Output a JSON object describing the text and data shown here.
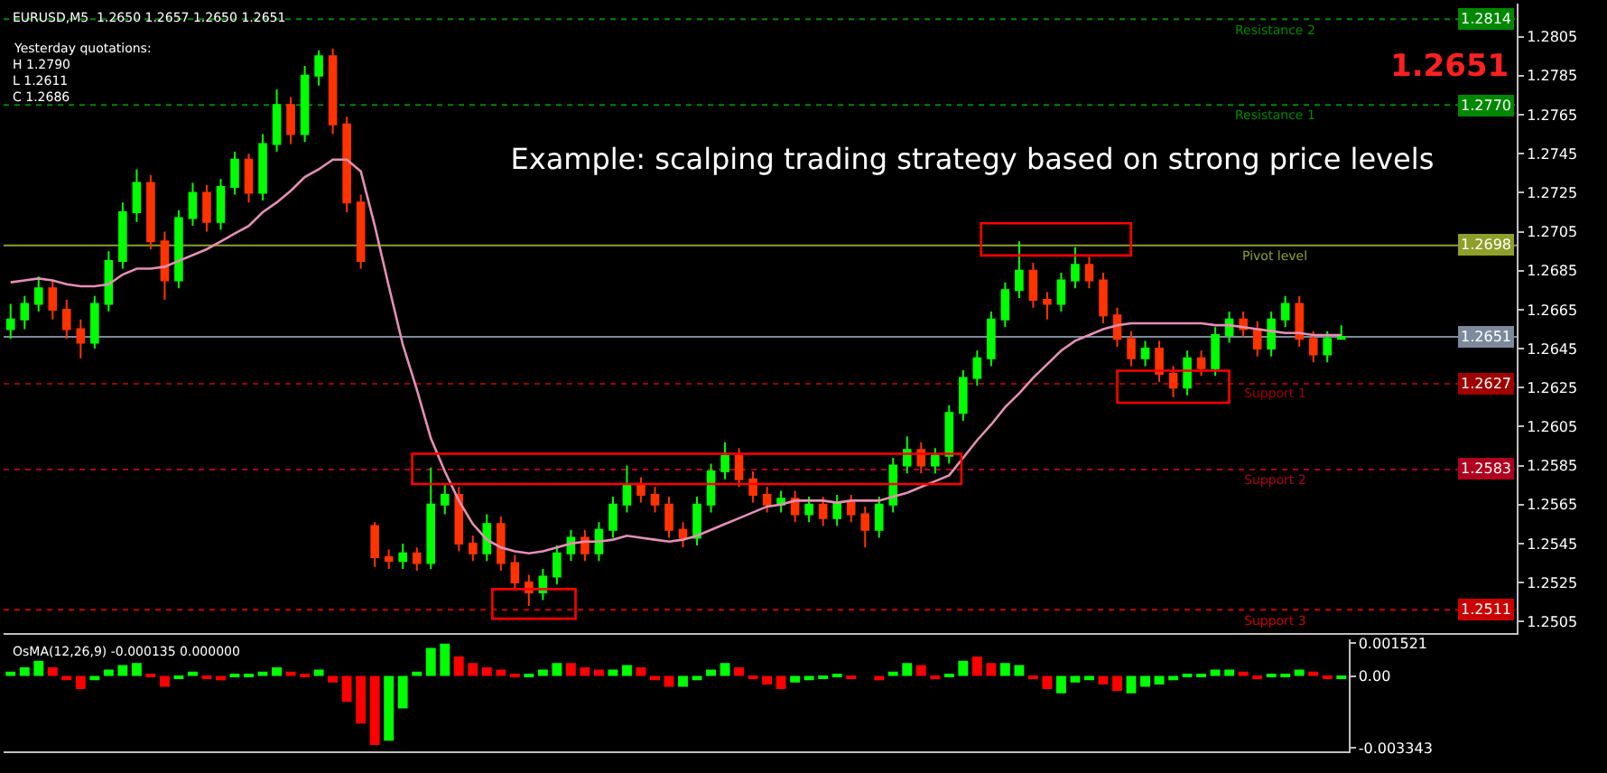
{
  "chart_data": [
    {
      "type": "candlestick",
      "title": "Example: scalping trading strategy based on strong price levels",
      "subtitle": "EURUSD,M5  1.2650 1.2657 1.2650 1.2651",
      "categories": [
        null,
        null,
        null,
        null,
        null,
        null,
        null,
        null,
        null,
        null,
        null,
        null,
        null,
        null,
        null,
        null,
        null,
        null,
        null,
        null,
        null,
        null,
        null,
        null,
        null,
        null,
        null,
        null,
        null,
        null,
        null,
        null,
        null,
        null,
        null,
        null,
        null,
        null,
        null,
        null,
        null,
        null,
        null,
        null,
        null,
        null,
        null,
        null,
        null,
        null,
        null,
        null,
        null,
        null,
        null,
        null,
        null,
        null,
        null,
        null,
        null,
        null,
        null,
        null,
        null,
        null,
        null,
        null,
        null,
        null,
        null,
        null,
        null,
        null,
        null,
        null,
        null,
        null,
        null,
        null,
        null,
        null,
        null,
        null,
        null,
        null,
        null,
        null,
        null,
        null,
        null,
        null,
        null,
        null,
        null,
        null
      ],
      "ohlc": [
        [
          1.2655,
          1.2668,
          1.265,
          1.266
        ],
        [
          1.266,
          1.2672,
          1.2655,
          1.2668
        ],
        [
          1.2668,
          1.2682,
          1.2664,
          1.2676
        ],
        [
          1.2676,
          1.268,
          1.266,
          1.2665
        ],
        [
          1.2665,
          1.267,
          1.265,
          1.2655
        ],
        [
          1.2655,
          1.266,
          1.264,
          1.2648
        ],
        [
          1.2648,
          1.2672,
          1.2645,
          1.2668
        ],
        [
          1.2668,
          1.2695,
          1.2664,
          1.269
        ],
        [
          1.269,
          1.272,
          1.2686,
          1.2715
        ],
        [
          1.2715,
          1.2737,
          1.271,
          1.273
        ],
        [
          1.273,
          1.2734,
          1.2696,
          1.27
        ],
        [
          1.27,
          1.2705,
          1.267,
          1.268
        ],
        [
          1.268,
          1.2716,
          1.2676,
          1.2712
        ],
        [
          1.2712,
          1.273,
          1.2708,
          1.2725
        ],
        [
          1.2725,
          1.2729,
          1.2705,
          1.271
        ],
        [
          1.271,
          1.2732,
          1.2706,
          1.2728
        ],
        [
          1.2728,
          1.2746,
          1.2724,
          1.2742
        ],
        [
          1.2742,
          1.2745,
          1.272,
          1.2725
        ],
        [
          1.2725,
          1.2755,
          1.2721,
          1.275
        ],
        [
          1.275,
          1.2778,
          1.2746,
          1.277
        ],
        [
          1.277,
          1.2774,
          1.275,
          1.2755
        ],
        [
          1.2755,
          1.279,
          1.2751,
          1.2785
        ],
        [
          1.2785,
          1.2798,
          1.278,
          1.2795
        ],
        [
          1.2795,
          1.2799,
          1.2755,
          1.276
        ],
        [
          1.276,
          1.2764,
          1.2715,
          1.272
        ],
        [
          1.272,
          1.2724,
          1.2686,
          1.269
        ],
        [
          1.2554,
          1.2556,
          1.2533,
          1.2538
        ],
        [
          1.2538,
          1.2542,
          1.2532,
          1.2536
        ],
        [
          1.2536,
          1.2545,
          1.2532,
          1.254
        ],
        [
          1.254,
          1.2543,
          1.2531,
          1.2535
        ],
        [
          1.2535,
          1.2584,
          1.2532,
          1.2565
        ],
        [
          1.2565,
          1.2575,
          1.256,
          1.257
        ],
        [
          1.257,
          1.2574,
          1.2541,
          1.2545
        ],
        [
          1.2545,
          1.2549,
          1.2536,
          1.254
        ],
        [
          1.254,
          1.256,
          1.2536,
          1.2555
        ],
        [
          1.2555,
          1.2559,
          1.2531,
          1.2535
        ],
        [
          1.2535,
          1.2539,
          1.2521,
          1.2525
        ],
        [
          1.2525,
          1.2529,
          1.2513,
          1.252
        ],
        [
          1.252,
          1.2532,
          1.2516,
          1.2528
        ],
        [
          1.2528,
          1.2544,
          1.2524,
          1.254
        ],
        [
          1.254,
          1.2552,
          1.2536,
          1.2548
        ],
        [
          1.2548,
          1.2552,
          1.2536,
          1.254
        ],
        [
          1.254,
          1.2556,
          1.2536,
          1.2552
        ],
        [
          1.2552,
          1.2569,
          1.2548,
          1.2565
        ],
        [
          1.2565,
          1.2585,
          1.2561,
          1.2575
        ],
        [
          1.2575,
          1.2579,
          1.2566,
          1.257
        ],
        [
          1.257,
          1.2574,
          1.2561,
          1.2565
        ],
        [
          1.2565,
          1.2569,
          1.2548,
          1.2552
        ],
        [
          1.2552,
          1.2556,
          1.2543,
          1.2548
        ],
        [
          1.2548,
          1.2569,
          1.2544,
          1.2565
        ],
        [
          1.2565,
          1.2586,
          1.2561,
          1.2582
        ],
        [
          1.2582,
          1.2597,
          1.2578,
          1.259
        ],
        [
          1.259,
          1.2594,
          1.2574,
          1.2578
        ],
        [
          1.2578,
          1.2582,
          1.2566,
          1.257
        ],
        [
          1.257,
          1.2574,
          1.2561,
          1.2565
        ],
        [
          1.2565,
          1.2572,
          1.2561,
          1.2568
        ],
        [
          1.2568,
          1.2572,
          1.2556,
          1.256
        ],
        [
          1.256,
          1.2569,
          1.2556,
          1.2565
        ],
        [
          1.2565,
          1.2569,
          1.2554,
          1.2558
        ],
        [
          1.2558,
          1.257,
          1.2554,
          1.2566
        ],
        [
          1.2566,
          1.257,
          1.2556,
          1.256
        ],
        [
          1.256,
          1.2564,
          1.2543,
          1.2552
        ],
        [
          1.2552,
          1.2569,
          1.2548,
          1.2565
        ],
        [
          1.2565,
          1.2589,
          1.2561,
          1.2585
        ],
        [
          1.2585,
          1.26,
          1.2581,
          1.2593
        ],
        [
          1.2593,
          1.2597,
          1.2581,
          1.2585
        ],
        [
          1.2585,
          1.2594,
          1.2581,
          1.259
        ],
        [
          1.259,
          1.2616,
          1.2586,
          1.2612
        ],
        [
          1.2612,
          1.2634,
          1.2608,
          1.263
        ],
        [
          1.263,
          1.2644,
          1.2626,
          1.264
        ],
        [
          1.264,
          1.2664,
          1.2636,
          1.266
        ],
        [
          1.266,
          1.2679,
          1.2656,
          1.2675
        ],
        [
          1.2675,
          1.27,
          1.2671,
          1.2685
        ],
        [
          1.2685,
          1.2689,
          1.2666,
          1.267
        ],
        [
          1.267,
          1.2674,
          1.266,
          1.2668
        ],
        [
          1.2668,
          1.2684,
          1.2664,
          1.268
        ],
        [
          1.268,
          1.2697,
          1.2676,
          1.2688
        ],
        [
          1.2688,
          1.2692,
          1.2676,
          1.268
        ],
        [
          1.268,
          1.2684,
          1.2658,
          1.2662
        ],
        [
          1.2662,
          1.2666,
          1.2646,
          1.265
        ],
        [
          1.265,
          1.2654,
          1.2636,
          1.264
        ],
        [
          1.264,
          1.2649,
          1.2636,
          1.2645
        ],
        [
          1.2645,
          1.2649,
          1.2628,
          1.2632
        ],
        [
          1.2632,
          1.2636,
          1.262,
          1.2625
        ],
        [
          1.2625,
          1.2644,
          1.2621,
          1.264
        ],
        [
          1.264,
          1.2644,
          1.2631,
          1.2635
        ],
        [
          1.2635,
          1.2656,
          1.2631,
          1.2652
        ],
        [
          1.2652,
          1.2664,
          1.2648,
          1.266
        ],
        [
          1.266,
          1.2664,
          1.2651,
          1.2655
        ],
        [
          1.2655,
          1.2659,
          1.2641,
          1.2645
        ],
        [
          1.2645,
          1.2664,
          1.2641,
          1.266
        ],
        [
          1.266,
          1.2672,
          1.2656,
          1.2668
        ],
        [
          1.2668,
          1.2672,
          1.2646,
          1.265
        ],
        [
          1.265,
          1.2654,
          1.2638,
          1.2642
        ],
        [
          1.2642,
          1.2654,
          1.2638,
          1.265
        ],
        [
          1.265,
          1.2657,
          1.265,
          1.2651
        ]
      ],
      "colors": [
        "#00ff00",
        "#00ff00",
        "#00ff00",
        "#ff3300",
        "#ff3300",
        "#ff3300",
        "#00ff00",
        "#00ff00",
        "#00ff00",
        "#00ff00",
        "#ff3300",
        "#ff3300",
        "#00ff00",
        "#00ff00",
        "#ff3300",
        "#00ff00",
        "#00ff00",
        "#ff3300",
        "#00ff00",
        "#00ff00",
        "#ff3300",
        "#00ff00",
        "#00ff00",
        "#ff3300",
        "#ff3300",
        "#ff3300",
        "#ff3300",
        "#ff3300",
        "#00ff00",
        "#ff3300",
        "#00ff00",
        "#00ff00",
        "#ff3300",
        "#ff3300",
        "#00ff00",
        "#ff3300",
        "#ff3300",
        "#ff3300",
        "#00ff00",
        "#00ff00",
        "#00ff00",
        "#ff3300",
        "#00ff00",
        "#00ff00",
        "#00ff00",
        "#ff3300",
        "#ff3300",
        "#ff3300",
        "#ff3300",
        "#00ff00",
        "#00ff00",
        "#00ff00",
        "#ff3300",
        "#ff3300",
        "#ff3300",
        "#00ff00",
        "#ff3300",
        "#00ff00",
        "#ff3300",
        "#00ff00",
        "#ff3300",
        "#ff3300",
        "#00ff00",
        "#00ff00",
        "#00ff00",
        "#ff3300",
        "#00ff00",
        "#00ff00",
        "#00ff00",
        "#00ff00",
        "#00ff00",
        "#00ff00",
        "#00ff00",
        "#ff3300",
        "#ff3300",
        "#00ff00",
        "#00ff00",
        "#ff3300",
        "#ff3300",
        "#ff3300",
        "#ff3300",
        "#00ff00",
        "#ff3300",
        "#ff3300",
        "#00ff00",
        "#ff3300",
        "#00ff00",
        "#00ff00",
        "#ff3300",
        "#ff3300",
        "#00ff00",
        "#00ff00",
        "#ff3300",
        "#ff3300",
        "#00ff00",
        "#00ff00"
      ],
      "series": [
        {
          "type": "line",
          "color": "#e58fb5",
          "values": [
            1.2679,
            1.268,
            1.2681,
            1.268,
            1.2678,
            1.2677,
            1.2677,
            1.2678,
            1.2683,
            1.2686,
            1.2686,
            1.2687,
            1.269,
            1.2693,
            1.2696,
            1.27,
            1.2704,
            1.2708,
            1.2715,
            1.272,
            1.2726,
            1.2733,
            1.2737,
            1.2742,
            1.2742,
            1.2736,
            1.2708,
            1.2677,
            1.2647,
            1.2624,
            1.2599,
            1.2582,
            1.2567,
            1.2555,
            1.2547,
            1.2543,
            1.2541,
            1.254,
            1.2541,
            1.2543,
            1.2545,
            1.2546,
            1.2546,
            1.2547,
            1.2549,
            1.2548,
            1.2547,
            1.2546,
            1.2547,
            1.2549,
            1.2552,
            1.2555,
            1.2558,
            1.2561,
            1.2564,
            1.2565,
            1.2567,
            1.2567,
            1.2567,
            1.2566,
            1.2567,
            1.2567,
            1.2567,
            1.2569,
            1.2571,
            1.2574,
            1.2577,
            1.258,
            1.2589,
            1.2598,
            1.2606,
            1.2615,
            1.2622,
            1.263,
            1.2637,
            1.2644,
            1.2649,
            1.2652,
            1.2655,
            1.2657,
            1.2658,
            1.2658,
            1.2658,
            1.2658,
            1.2658,
            1.2658,
            1.2657,
            1.2657,
            1.2656,
            1.2655,
            1.2654,
            1.2653,
            1.2653,
            1.2652,
            1.2652,
            1.2652
          ]
        }
      ],
      "ylim": [
        1.2499,
        1.2822
      ],
      "yticks": [
        1.2505,
        1.2525,
        1.2545,
        1.2565,
        1.2585,
        1.2605,
        1.2625,
        1.2645,
        1.2665,
        1.2685,
        1.2705,
        1.2725,
        1.2745,
        1.2765,
        1.2785,
        1.2805
      ],
      "ref_lines": [
        {
          "axis": "y",
          "value": 1.2814,
          "label": "Resistance 2",
          "color": "#008800",
          "line_style": "dotted"
        },
        {
          "axis": "y",
          "value": 1.277,
          "label": "Resistance 1",
          "color": "#008800",
          "line_style": "dotted"
        },
        {
          "axis": "y",
          "value": 1.2698,
          "label": "Pivot level",
          "color": "#8fa02a",
          "line_style": "solid"
        },
        {
          "axis": "y",
          "value": 1.2651,
          "label": null,
          "color": "#7c8a9c",
          "line_style": "solid"
        },
        {
          "axis": "y",
          "value": 1.2627,
          "label": "Support 1",
          "color": "#a00000",
          "line_style": "dotted"
        },
        {
          "axis": "y",
          "value": 1.2583,
          "label": "Support 2",
          "color": "#b00020",
          "line_style": "dotted"
        },
        {
          "axis": "y",
          "value": 1.2511,
          "label": "Support 3",
          "color": "#cc0000",
          "line_style": "dotted"
        }
      ],
      "annotations": [
        "Yesterday quotations:",
        "H 1.2790",
        "L 1.2611",
        "C 1.2686",
        "1.2651",
        {
          "text": "1.2814",
          "y": 1.2814
        },
        {
          "text": "1.2770",
          "y": 1.277
        },
        {
          "text": "1.2698",
          "y": 1.2698
        },
        {
          "text": "1.2651",
          "y": 1.2651
        },
        {
          "text": "1.2627",
          "y": 1.2627
        },
        {
          "text": "1.2583",
          "y": 1.2583
        },
        {
          "text": "1.2511",
          "y": 1.2511
        }
      ],
      "tick_labels": "y"
    },
    {
      "type": "bar",
      "title": "OsMA(12,26,9) -0.000135 0.000000",
      "categories": [
        null,
        null,
        null,
        null,
        null,
        null,
        null,
        null,
        null,
        null,
        null,
        null,
        null,
        null,
        null,
        null,
        null,
        null,
        null,
        null,
        null,
        null,
        null,
        null,
        null,
        null,
        null,
        null,
        null,
        null,
        null,
        null,
        null,
        null,
        null,
        null,
        null,
        null,
        null,
        null,
        null,
        null,
        null,
        null,
        null,
        null,
        null,
        null,
        null,
        null,
        null,
        null,
        null,
        null,
        null,
        null,
        null,
        null,
        null,
        null,
        null,
        null,
        null,
        null,
        null,
        null,
        null,
        null,
        null,
        null,
        null,
        null,
        null,
        null,
        null,
        null,
        null,
        null,
        null,
        null,
        null,
        null,
        null,
        null,
        null,
        null,
        null,
        null,
        null,
        null,
        null,
        null,
        null,
        null,
        null,
        null
      ],
      "values": [
        0.0002,
        0.0004,
        0.0007,
        0.0004,
        -0.0002,
        -0.0006,
        -0.0002,
        0.0003,
        0.0005,
        0.0006,
        0.0001,
        -0.0005,
        -0.0001,
        0.0002,
        -0.0001,
        -0.0002,
        0.0001,
        0.0001,
        0.0002,
        0.0004,
        0.0002,
        0.0001,
        0.0003,
        -0.0003,
        -0.0012,
        -0.0022,
        -0.0032,
        -0.003,
        -0.0015,
        0.0002,
        0.0013,
        0.0015,
        0.0009,
        0.0006,
        0.0004,
        0.0003,
        0.0001,
        0.0001,
        0.0003,
        0.0006,
        0.0006,
        0.0004,
        0.0003,
        0.0003,
        0.0005,
        0.0004,
        -0.0002,
        -0.0005,
        -0.0005,
        -0.0002,
        0.0003,
        0.0006,
        0.0004,
        -0.0001,
        -0.0004,
        -0.0006,
        -0.0003,
        -0.0002,
        -0.0001,
        0.0001,
        -0.0001,
        0.0,
        -0.0002,
        0.0002,
        0.0006,
        0.0005,
        -0.0001,
        0.0001,
        0.0007,
        0.0009,
        0.0006,
        0.0006,
        0.0005,
        -0.0001,
        -0.0006,
        -0.0008,
        -0.0003,
        -0.0002,
        -0.0004,
        -0.0007,
        -0.0008,
        -0.0005,
        -0.0004,
        -0.0002,
        0.0001,
        0.0001,
        0.0003,
        0.0003,
        0.0002,
        -0.0001,
        0.0001,
        0.0001,
        0.0003,
        0.0002,
        -0.0001,
        -0.0001
      ],
      "colors": [
        "#00ff00",
        "#00ff00",
        "#00ff00",
        "#ff0000",
        "#ff0000",
        "#ff0000",
        "#00ff00",
        "#00ff00",
        "#00ff00",
        "#00ff00",
        "#ff0000",
        "#ff0000",
        "#00ff00",
        "#00ff00",
        "#ff0000",
        "#ff0000",
        "#00ff00",
        "#00ff00",
        "#00ff00",
        "#00ff00",
        "#ff0000",
        "#ff0000",
        "#00ff00",
        "#ff0000",
        "#ff0000",
        "#ff0000",
        "#ff0000",
        "#00ff00",
        "#00ff00",
        "#00ff00",
        "#00ff00",
        "#00ff00",
        "#ff0000",
        "#ff0000",
        "#ff0000",
        "#ff0000",
        "#ff0000",
        "#00ff00",
        "#00ff00",
        "#00ff00",
        "#ff0000",
        "#ff0000",
        "#ff0000",
        "#00ff00",
        "#00ff00",
        "#ff0000",
        "#ff0000",
        "#ff0000",
        "#00ff00",
        "#00ff00",
        "#00ff00",
        "#00ff00",
        "#ff0000",
        "#ff0000",
        "#ff0000",
        "#ff0000",
        "#00ff00",
        "#00ff00",
        "#00ff00",
        "#00ff00",
        "#ff0000",
        "#00ff00",
        "#ff0000",
        "#00ff00",
        "#00ff00",
        "#ff0000",
        "#ff0000",
        "#00ff00",
        "#00ff00",
        "#ff0000",
        "#ff0000",
        "#00ff00",
        "#00ff00",
        "#ff0000",
        "#ff0000",
        "#00ff00",
        "#00ff00",
        "#00ff00",
        "#ff0000",
        "#ff0000",
        "#00ff00",
        "#00ff00",
        "#00ff00",
        "#00ff00",
        "#00ff00",
        "#00ff00",
        "#00ff00",
        "#00ff00",
        "#ff0000",
        "#ff0000",
        "#00ff00",
        "#00ff00",
        "#00ff00",
        "#ff0000",
        "#ff0000",
        "#00ff00"
      ],
      "ylim": [
        -0.0035,
        0.0017
      ],
      "yticks": [
        0.001521,
        {
          "value": 0,
          "label": "0.00"
        },
        -0.003343
      ],
      "tick_labels": "y"
    }
  ]
}
